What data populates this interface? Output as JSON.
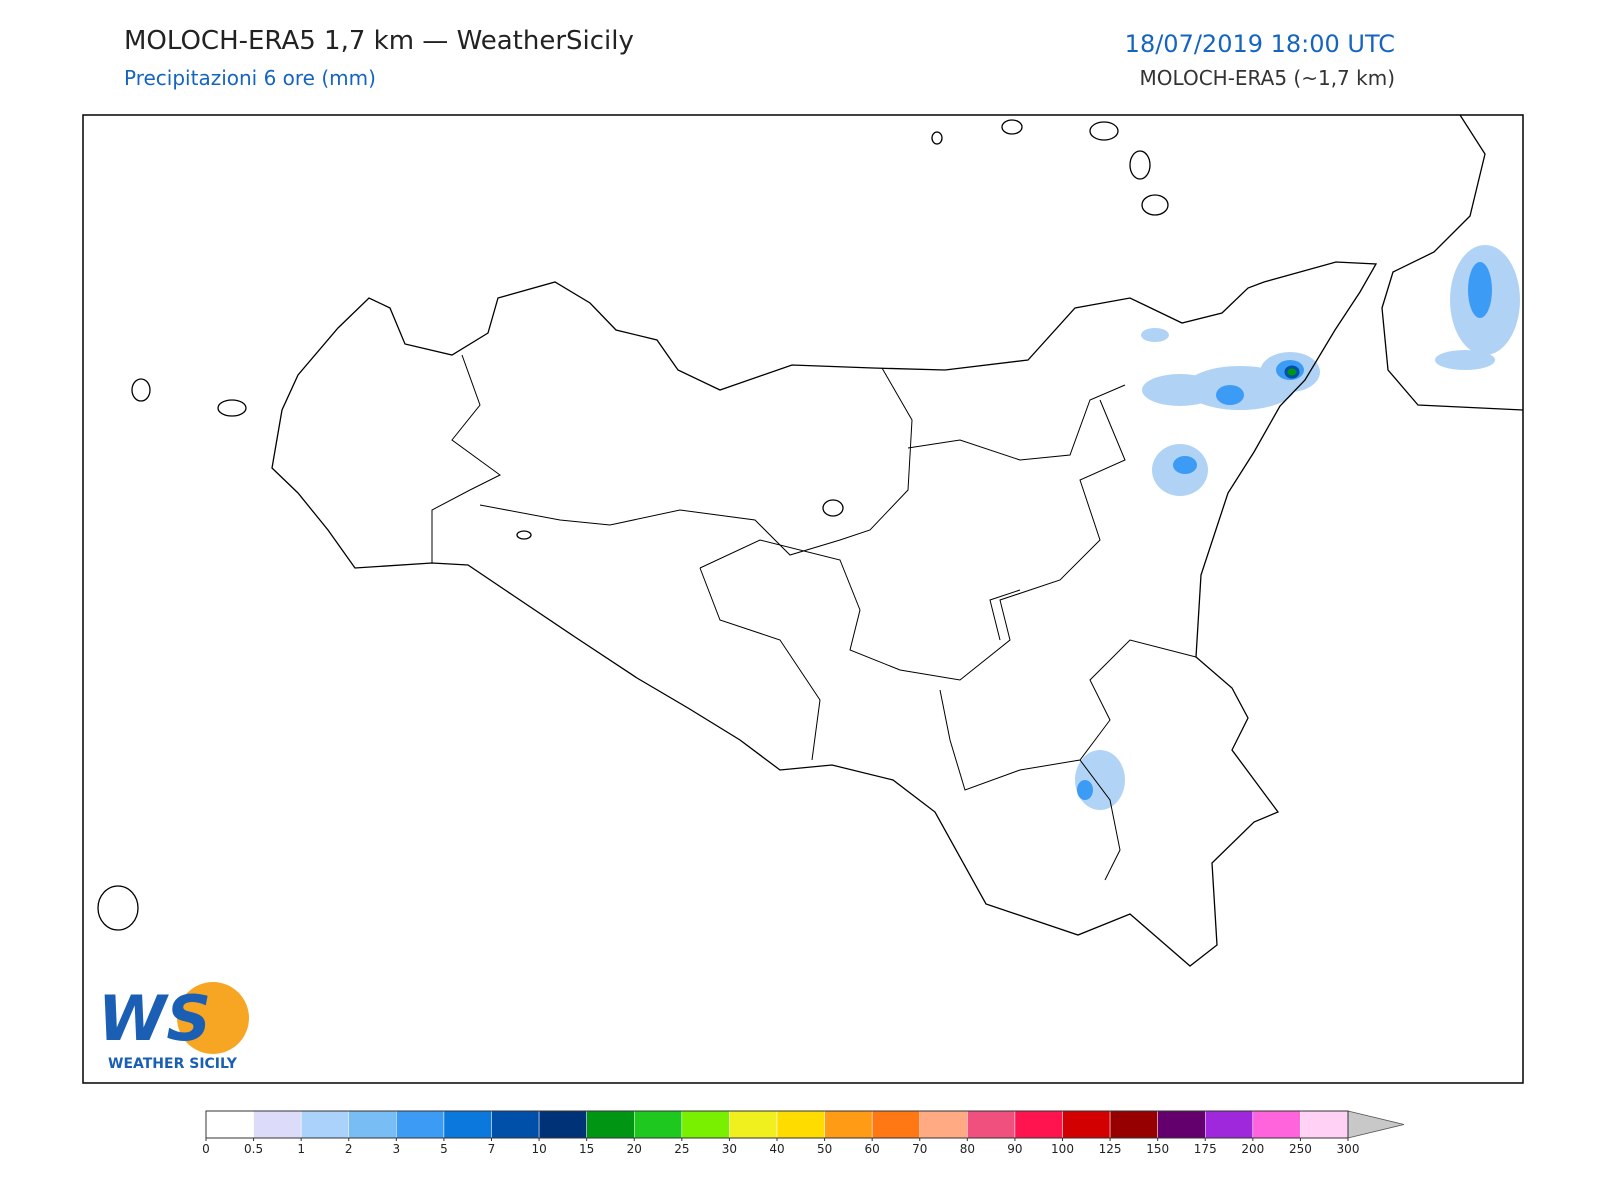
{
  "header": {
    "title": "MOLOCH-ERA5 1,7 km — WeatherSicily",
    "subtitle": "Precipitazioni 6 ore (mm)",
    "datetime": "18/07/2019 18:00 UTC",
    "model": "MOLOCH-ERA5 (~1,7 km)"
  },
  "logo": {
    "mark": "WS",
    "name": "WEATHER SICILY"
  },
  "colorbar": {
    "ticks": [
      0,
      0.5,
      1,
      2,
      3,
      5,
      7,
      10,
      15,
      20,
      25,
      30,
      40,
      50,
      60,
      70,
      80,
      90,
      100,
      125,
      150,
      175,
      200,
      250,
      300
    ],
    "colors": [
      "#ffffff",
      "#dcdcfa",
      "#aad2fa",
      "#78bef5",
      "#3c9bf5",
      "#0a78dc",
      "#0050aa",
      "#003278",
      "#009614",
      "#1ec81e",
      "#78f000",
      "#f0f01e",
      "#ffdc00",
      "#ff9b14",
      "#ff7814",
      "#ffaa82",
      "#f0507d",
      "#ff1450",
      "#d20000",
      "#960000",
      "#64006e",
      "#a028dc",
      "#ff64dc",
      "#ffd2f5"
    ],
    "extend_color": "#c8c8c8"
  }
}
